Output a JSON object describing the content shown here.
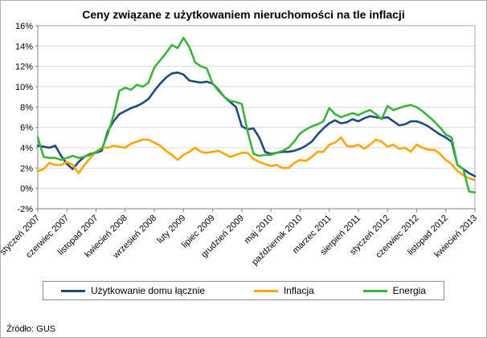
{
  "title": "Ceny związane z użytkowaniem nieruchomości na tle inflacji",
  "source": "Źródło: GUS",
  "colors": {
    "grid": "#d9d9d9",
    "axis": "#808080",
    "plot_border": "#a6a6a6"
  },
  "chart_data": {
    "type": "line",
    "x_start": "styczeń 2007",
    "x_end": "kwiecień 2013",
    "points_per_tick": 5,
    "x_tick_labels": [
      "styczeń 2007",
      "czerwiec 2007",
      "listopad 2007",
      "kwiecień 2008",
      "wrzesień 2008",
      "luty 2009",
      "lipiec 2009",
      "grudzień 2009",
      "maj 2010",
      "październik 2010",
      "marzec 2011",
      "sierpień 2011",
      "styczeń 2012",
      "czerwiec 2012",
      "listopad 2012",
      "kwiecień 2013"
    ],
    "ylim": [
      -2,
      16
    ],
    "y_tick_step": 2,
    "y_tick_labels": [
      "-2%",
      "0%",
      "2%",
      "4%",
      "6%",
      "8%",
      "10%",
      "12%",
      "14%",
      "16%"
    ],
    "grid": true,
    "legend_position": "bottom",
    "series": [
      {
        "name": "Użytkowanie domu łącznie",
        "color": "#1F497D",
        "values": [
          4.2,
          4.1,
          4.0,
          4.2,
          3.2,
          2.4,
          1.9,
          2.6,
          3.1,
          3.4,
          3.5,
          3.7,
          5.6,
          6.6,
          7.3,
          7.6,
          7.9,
          8.1,
          8.4,
          8.8,
          9.6,
          10.3,
          10.9,
          11.3,
          11.4,
          11.2,
          10.6,
          10.5,
          10.4,
          10.5,
          10.3,
          9.7,
          9.0,
          8.5,
          8.0,
          6.1,
          5.8,
          5.9,
          5.0,
          3.6,
          3.4,
          3.5,
          3.6,
          3.6,
          3.7,
          3.9,
          4.2,
          4.6,
          5.3,
          5.9,
          6.4,
          6.7,
          6.4,
          6.5,
          6.8,
          6.6,
          6.9,
          7.1,
          7.0,
          6.9,
          7.0,
          6.6,
          6.2,
          6.3,
          6.6,
          6.6,
          6.4,
          6.1,
          5.7,
          5.3,
          5.0,
          4.6,
          2.3,
          1.9,
          1.5,
          1.2
        ]
      },
      {
        "name": "Inflacja",
        "color": "#FFA500",
        "values": [
          1.7,
          1.9,
          2.5,
          2.3,
          2.3,
          2.6,
          2.3,
          1.5,
          2.3,
          3.0,
          3.6,
          4.0,
          4.0,
          4.2,
          4.1,
          4.0,
          4.4,
          4.6,
          4.8,
          4.8,
          4.5,
          4.2,
          3.7,
          3.3,
          2.8,
          3.3,
          3.6,
          4.0,
          3.6,
          3.5,
          3.6,
          3.7,
          3.4,
          3.1,
          3.3,
          3.5,
          3.5,
          2.9,
          2.6,
          2.4,
          2.2,
          2.3,
          2.0,
          2.0,
          2.5,
          2.8,
          2.7,
          3.1,
          3.6,
          3.6,
          4.3,
          4.5,
          5.0,
          4.2,
          4.1,
          4.3,
          3.9,
          4.3,
          4.8,
          4.6,
          4.1,
          4.3,
          3.9,
          4.0,
          3.6,
          4.3,
          4.0,
          3.8,
          3.8,
          3.4,
          2.8,
          2.4,
          1.7,
          1.3,
          1.0,
          0.8
        ]
      },
      {
        "name": "Energia",
        "color": "#3BB33B",
        "values": [
          5.0,
          3.1,
          3.0,
          3.0,
          2.8,
          3.0,
          3.2,
          3.0,
          3.1,
          3.3,
          3.6,
          3.9,
          5.3,
          7.2,
          9.6,
          9.9,
          9.7,
          10.2,
          10.0,
          10.4,
          11.9,
          12.6,
          13.3,
          14.1,
          13.8,
          14.8,
          13.9,
          12.4,
          12.0,
          11.8,
          10.3,
          9.6,
          9.0,
          8.6,
          8.5,
          8.3,
          5.6,
          3.4,
          3.2,
          3.3,
          3.3,
          3.5,
          3.7,
          4.0,
          4.6,
          5.4,
          5.8,
          6.1,
          6.3,
          6.6,
          7.9,
          7.3,
          7.0,
          7.2,
          7.4,
          7.2,
          7.5,
          7.7,
          7.3,
          6.8,
          8.1,
          7.7,
          7.9,
          8.1,
          8.2,
          8.0,
          7.6,
          7.1,
          6.6,
          6.0,
          5.3,
          5.0,
          2.3,
          1.9,
          -0.3,
          -0.4
        ]
      }
    ]
  }
}
